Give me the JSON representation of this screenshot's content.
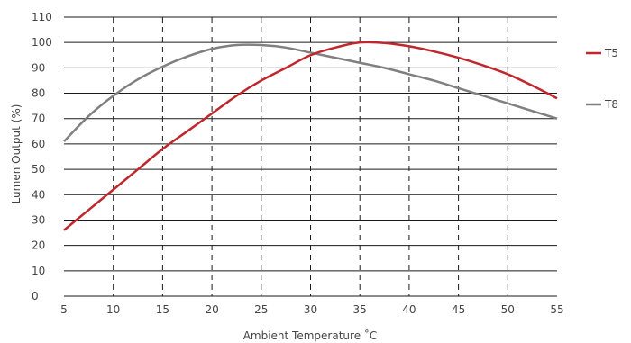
{
  "chart_data": {
    "type": "line",
    "xlabel": "Ambient Temperature ˚C",
    "ylabel": "Lumen Output (%)",
    "xlim": [
      5,
      55
    ],
    "ylim": [
      0,
      110
    ],
    "x_ticks": [
      5,
      10,
      15,
      20,
      25,
      30,
      35,
      40,
      45,
      50,
      55
    ],
    "y_ticks": [
      0,
      10,
      20,
      30,
      40,
      50,
      60,
      70,
      80,
      90,
      100,
      110
    ],
    "grid": {
      "horizontal": "solid",
      "vertical": "dashed"
    },
    "legend_position": "right",
    "series": [
      {
        "name": "T5",
        "color": "#c0272d",
        "points": [
          [
            5,
            26
          ],
          [
            7.5,
            34
          ],
          [
            10,
            42
          ],
          [
            12.5,
            50
          ],
          [
            15,
            58
          ],
          [
            17.5,
            65
          ],
          [
            20,
            72
          ],
          [
            22.5,
            79
          ],
          [
            25,
            85
          ],
          [
            27.5,
            90
          ],
          [
            30,
            95
          ],
          [
            32.5,
            98
          ],
          [
            35,
            100
          ],
          [
            37.5,
            99.8
          ],
          [
            40,
            98.5
          ],
          [
            42.5,
            96.5
          ],
          [
            45,
            94
          ],
          [
            47.5,
            91
          ],
          [
            50,
            87.5
          ],
          [
            52.5,
            83
          ],
          [
            55,
            78
          ]
        ]
      },
      {
        "name": "T8",
        "color": "#808080",
        "points": [
          [
            5,
            61
          ],
          [
            7.5,
            71
          ],
          [
            10,
            79
          ],
          [
            12.5,
            85.5
          ],
          [
            15,
            90.5
          ],
          [
            17.5,
            94.5
          ],
          [
            20,
            97.5
          ],
          [
            22.5,
            99
          ],
          [
            25,
            99
          ],
          [
            27.5,
            98
          ],
          [
            30,
            96
          ],
          [
            32.5,
            94
          ],
          [
            35,
            92
          ],
          [
            37.5,
            90
          ],
          [
            40,
            87.5
          ],
          [
            42.5,
            85
          ],
          [
            45,
            82
          ],
          [
            47.5,
            79
          ],
          [
            50,
            76
          ],
          [
            52.5,
            73
          ],
          [
            55,
            70
          ]
        ]
      }
    ]
  }
}
